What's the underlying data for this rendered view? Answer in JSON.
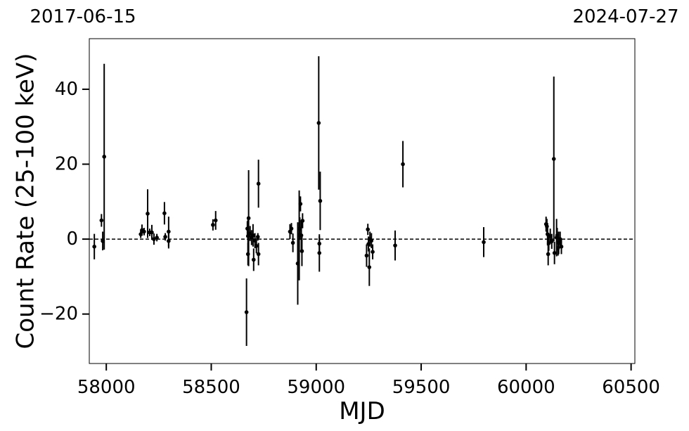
{
  "chart_data": {
    "type": "errorbar",
    "xlabel": "MJD",
    "ylabel": "Count Rate (25-100 keV)",
    "top_axis_labels": [
      "2017-06-15",
      "2024-07-27"
    ],
    "xlim": [
      57919,
      60518
    ],
    "ylim": [
      -33.2,
      53.5
    ],
    "xticks": [
      58000,
      58500,
      59000,
      59500,
      60000,
      60500
    ],
    "yticks": [
      {
        "value": -20,
        "label": "−20"
      },
      0,
      20,
      40
    ],
    "hline": 0,
    "color": "#000000",
    "x": [
      57943,
      57977,
      57983,
      57990,
      58164,
      58170,
      58180,
      58197,
      58207,
      58217,
      58227,
      58241,
      58277,
      58281,
      58297,
      58297,
      58508,
      58521,
      58668,
      58672,
      58675,
      58675,
      58678,
      58685,
      58692,
      58699,
      58702,
      58708,
      58715,
      58722,
      58725,
      58725,
      58875,
      58882,
      58889,
      58912,
      58919,
      58922,
      58925,
      58929,
      58932,
      58935,
      59012,
      59015,
      59015,
      59019,
      59240,
      59246,
      59249,
      59253,
      59256,
      59263,
      59269,
      59376,
      59413,
      59798,
      60095,
      60099,
      60102,
      60105,
      60108,
      60115,
      60122,
      60132,
      60135,
      60145,
      60148,
      60152,
      60155,
      60162,
      60168
    ],
    "values": [
      -2,
      5,
      -0.5,
      22,
      1.3,
      2.4,
      2,
      6.8,
      1.8,
      1.8,
      0,
      0.4,
      6.9,
      0.6,
      2,
      -0.5,
      3.8,
      5,
      -19.5,
      2.8,
      0.8,
      -4,
      5.6,
      1.5,
      0.4,
      1,
      -5.5,
      -0.4,
      -1.8,
      0.6,
      -4,
      14.8,
      2,
      2.8,
      -1,
      -6.5,
      1,
      2.8,
      9.4,
      1,
      -3.2,
      4.9,
      31,
      -1.2,
      -3.7,
      10.2,
      -4.4,
      2.6,
      -1.3,
      -7.5,
      0,
      -0.4,
      -3.4,
      -1.7,
      20,
      -0.8,
      4,
      3.4,
      1.3,
      -4,
      -1.1,
      0.8,
      -0.6,
      21.4,
      -3.7,
      0.4,
      1,
      -2.4,
      -1,
      0,
      -2
    ],
    "errors": [
      3.4,
      1.7,
      2.5,
      24.8,
      1,
      1.5,
      1,
      6.5,
      1,
      2,
      1.5,
      1,
      3,
      1,
      4,
      2,
      1.5,
      2.5,
      9,
      2,
      5,
      3,
      12.8,
      2,
      2,
      3,
      3,
      2,
      2,
      1,
      3,
      6.4,
      2,
      1.5,
      2.5,
      11,
      12,
      3,
      2,
      4,
      4,
      2,
      17.8,
      2,
      5,
      7.8,
      3,
      1.5,
      2,
      5,
      2,
      2,
      2,
      4,
      6.2,
      4,
      2,
      2,
      3,
      3,
      2,
      2,
      2,
      22,
      3,
      5,
      2,
      2,
      3,
      2,
      2
    ]
  }
}
